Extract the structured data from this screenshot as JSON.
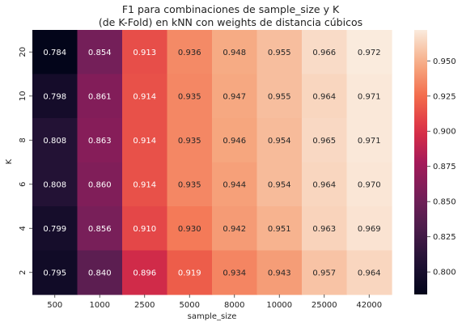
{
  "chart_data": {
    "type": "heatmap",
    "title_line1": "F1 para combinaciones de sample_size y K",
    "title_line2": "(de K-Fold) en kNN con weights de distancia cúbicos",
    "xlabel": "sample_size",
    "ylabel": "K",
    "x_categories": [
      "500",
      "1000",
      "2500",
      "5000",
      "8000",
      "10000",
      "25000",
      "42000"
    ],
    "y_categories": [
      "20",
      "10",
      "8",
      "6",
      "4",
      "2"
    ],
    "values": [
      [
        0.784,
        0.854,
        0.913,
        0.936,
        0.948,
        0.955,
        0.966,
        0.972
      ],
      [
        0.798,
        0.861,
        0.914,
        0.935,
        0.947,
        0.955,
        0.964,
        0.971
      ],
      [
        0.808,
        0.863,
        0.914,
        0.935,
        0.946,
        0.954,
        0.965,
        0.971
      ],
      [
        0.808,
        0.86,
        0.914,
        0.935,
        0.944,
        0.954,
        0.964,
        0.97
      ],
      [
        0.799,
        0.856,
        0.91,
        0.93,
        0.942,
        0.951,
        0.963,
        0.969
      ],
      [
        0.795,
        0.84,
        0.896,
        0.919,
        0.934,
        0.943,
        0.957,
        0.964
      ]
    ],
    "value_format": "3 decimals",
    "vmin": 0.784,
    "vmax": 0.972,
    "colormap": "rocket",
    "colorbar_ticks": [
      0.8,
      0.825,
      0.85,
      0.875,
      0.9,
      0.925,
      0.95
    ]
  }
}
